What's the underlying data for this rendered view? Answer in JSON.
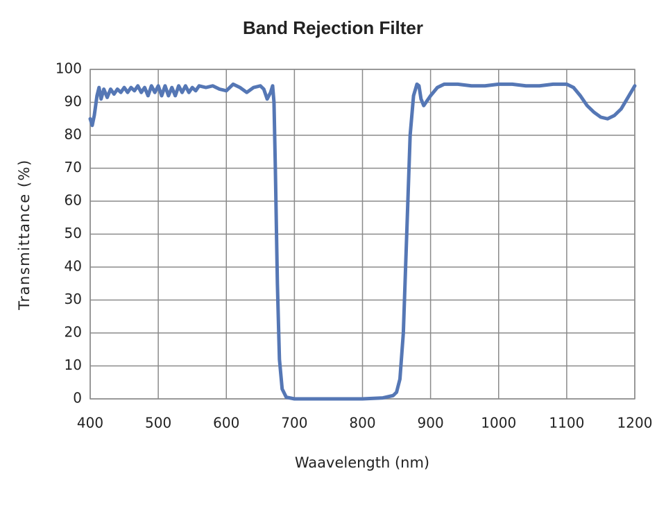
{
  "chart_data": {
    "type": "line",
    "title": "Band Rejection Filter",
    "x_label": "Waavelength (nm)",
    "y_label": "Transmittance (%)",
    "x": [
      400,
      403,
      406,
      410,
      413,
      416,
      420,
      425,
      430,
      435,
      440,
      445,
      450,
      455,
      460,
      465,
      470,
      475,
      480,
      485,
      490,
      495,
      500,
      505,
      510,
      515,
      520,
      525,
      530,
      535,
      540,
      545,
      550,
      555,
      560,
      570,
      580,
      590,
      600,
      610,
      620,
      630,
      640,
      650,
      655,
      660,
      665,
      668,
      670,
      672,
      675,
      678,
      682,
      688,
      700,
      750,
      800,
      830,
      845,
      850,
      855,
      860,
      865,
      870,
      875,
      880,
      883,
      886,
      890,
      895,
      900,
      910,
      920,
      940,
      960,
      980,
      1000,
      1020,
      1040,
      1060,
      1080,
      1100,
      1110,
      1120,
      1130,
      1140,
      1150,
      1160,
      1170,
      1180,
      1190,
      1200
    ],
    "values": [
      85,
      83,
      86,
      92,
      94.5,
      91,
      94,
      91.5,
      94,
      92.5,
      94,
      93,
      94.5,
      93,
      94.5,
      93.5,
      95,
      93,
      94.5,
      92,
      95,
      93,
      95,
      92,
      95,
      92,
      94.5,
      92,
      95,
      93,
      95,
      93,
      94.5,
      93.5,
      95,
      94.5,
      95,
      94,
      93.5,
      95.5,
      94.5,
      93,
      94.5,
      95,
      94,
      91,
      93,
      95,
      90,
      70,
      35,
      12,
      3,
      0.5,
      0,
      0,
      0,
      0.3,
      1,
      2,
      6,
      20,
      50,
      80,
      92,
      95.5,
      95,
      91,
      89,
      90.5,
      92,
      94.5,
      95.5,
      95.5,
      95,
      95,
      95.5,
      95.5,
      95,
      95,
      95.5,
      95.5,
      94.5,
      92,
      89,
      87,
      85.5,
      85,
      86,
      88,
      91.5,
      95
    ],
    "color": "#5577b5",
    "xlim": [
      400,
      1200
    ],
    "xticks": [
      400,
      500,
      600,
      700,
      800,
      900,
      1000,
      1100,
      1200
    ],
    "ylim": [
      0,
      100
    ],
    "yticks": [
      0,
      10,
      20,
      30,
      40,
      50,
      60,
      70,
      80,
      90,
      100
    ],
    "grid": true
  }
}
